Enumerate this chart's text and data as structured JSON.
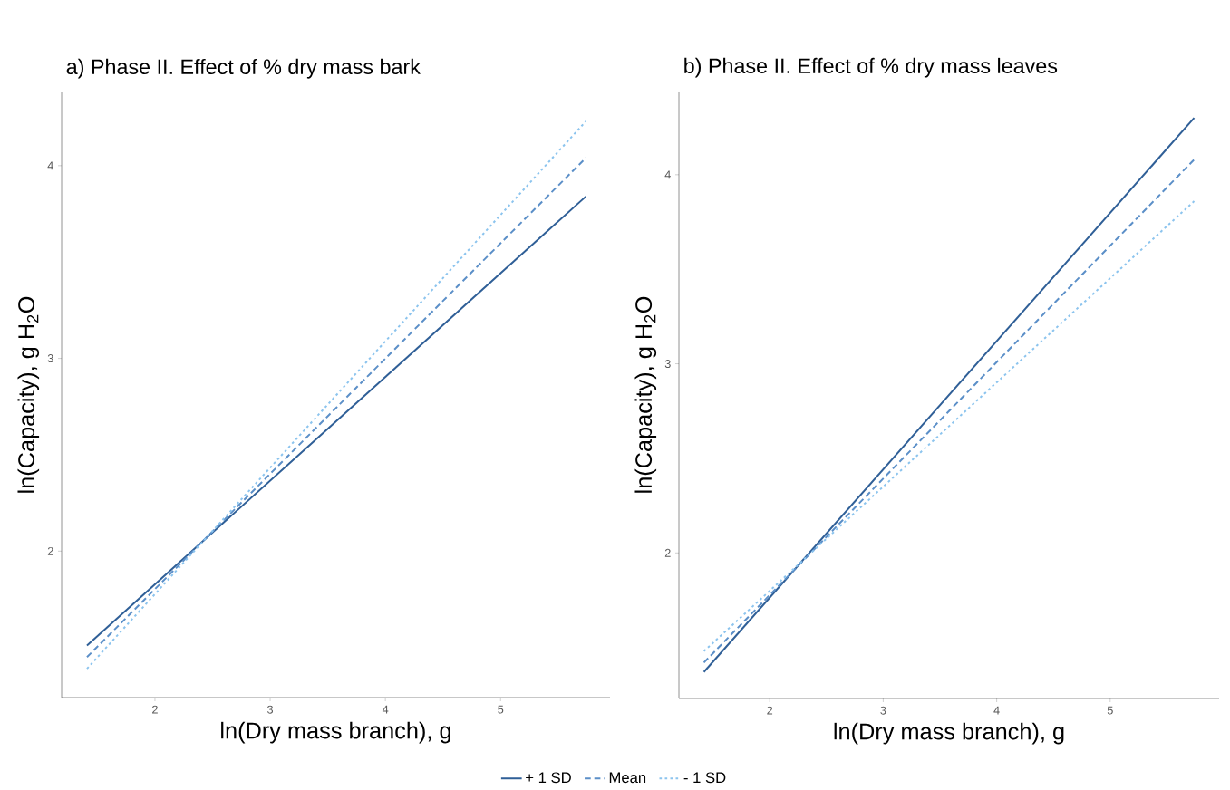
{
  "chart_data": [
    {
      "type": "line",
      "title": "a) Phase II. Effect of % dry mass bark",
      "xlabel": "ln(Dry mass branch), g",
      "ylabel": "ln(Capacity), g H$_{2}$O",
      "xlim": [
        1.19,
        5.95
      ],
      "ylim": [
        1.24,
        4.38
      ],
      "xticks": [
        2,
        3,
        4,
        5
      ],
      "yticks": [
        2,
        3,
        4
      ],
      "grid": false,
      "legend": "bottom",
      "series": [
        {
          "name": "+ 1 SD",
          "color": "#2f5f97",
          "line_style": "solid",
          "x": [
            1.41,
            5.74
          ],
          "values": [
            1.51,
            3.84
          ]
        },
        {
          "name": "Mean",
          "color": "#5b8fc8",
          "line_style": "dashed",
          "x": [
            1.41,
            5.74
          ],
          "values": [
            1.45,
            4.04
          ]
        },
        {
          "name": "- 1 SD",
          "color": "#8cc4ee",
          "line_style": "dotted",
          "x": [
            1.41,
            5.74
          ],
          "values": [
            1.39,
            4.23
          ]
        }
      ]
    },
    {
      "type": "line",
      "title": "b) Phase II. Effect of % dry mass leaves",
      "xlabel": "ln(Dry mass branch), g",
      "ylabel": "ln(Capacity), g H$_{2}$O",
      "xlim": [
        1.2,
        5.96
      ],
      "ylim": [
        1.23,
        4.44
      ],
      "xticks": [
        2,
        3,
        4,
        5
      ],
      "yticks": [
        2,
        3,
        4
      ],
      "grid": false,
      "series": [
        {
          "color": "#2f5f97",
          "line_style": "solid",
          "x": [
            1.42,
            5.74
          ],
          "values": [
            1.37,
            4.3
          ]
        },
        {
          "color": "#5b8fc8",
          "line_style": "dashed",
          "x": [
            1.42,
            5.74
          ],
          "values": [
            1.42,
            4.08
          ]
        },
        {
          "color": "#8cc4ee",
          "line_style": "dotted",
          "x": [
            1.42,
            5.74
          ],
          "values": [
            1.48,
            3.86
          ]
        }
      ]
    }
  ]
}
